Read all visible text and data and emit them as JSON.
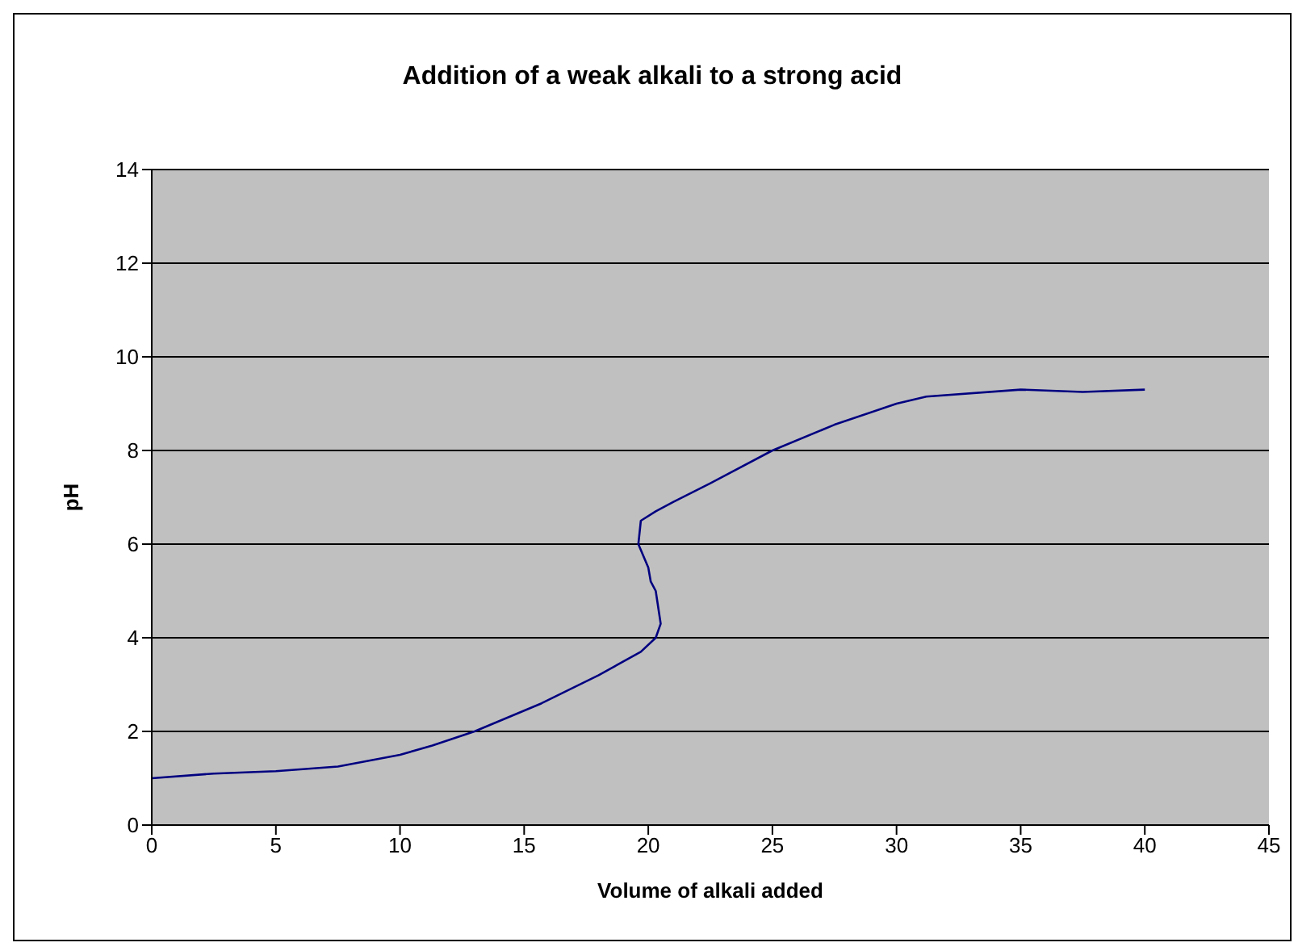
{
  "chart_data": {
    "type": "line",
    "title": "Addition of a weak alkali to a strong acid",
    "xlabel": "Volume of alkali added",
    "ylabel": "pH",
    "x": [
      0,
      2.5,
      5,
      7.5,
      10,
      11.3,
      13,
      15.7,
      18,
      19.7,
      20.3,
      20.5,
      20.3,
      20.1,
      20,
      19.6,
      19.7,
      20.3,
      21,
      22.5,
      25,
      27.5,
      30,
      31.2,
      35,
      37.5,
      40
    ],
    "series": [
      {
        "color": "#000080",
        "values": [
          1.0,
          1.1,
          1.15,
          1.25,
          1.5,
          1.7,
          2.0,
          2.6,
          3.2,
          3.7,
          4.0,
          4.3,
          5.0,
          5.2,
          5.5,
          6.0,
          6.5,
          6.7,
          6.9,
          7.3,
          8.0,
          8.55,
          9.0,
          9.15,
          9.3,
          9.25,
          9.3
        ]
      }
    ],
    "xlim": [
      0,
      45
    ],
    "xticks": [
      0,
      5,
      10,
      15,
      20,
      25,
      30,
      35,
      40,
      45
    ],
    "ylim": [
      0,
      14
    ],
    "yticks": [
      0,
      2,
      4,
      6,
      8,
      10,
      12,
      14
    ],
    "grid": "y",
    "marker": "none"
  }
}
